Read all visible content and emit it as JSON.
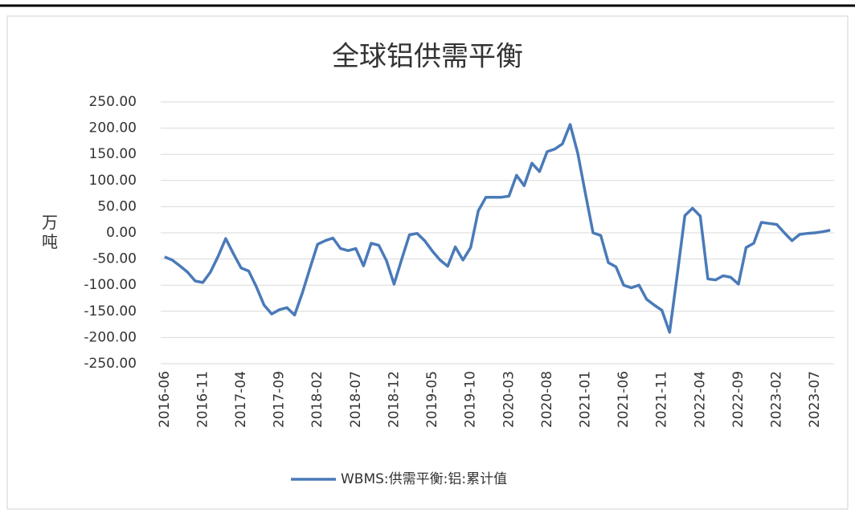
{
  "chart_data": {
    "type": "line",
    "title": "全球铝供需平衡",
    "y_label": "万吨",
    "categories": [
      "2016-06",
      null,
      null,
      null,
      null,
      "2016-11",
      null,
      null,
      null,
      null,
      "2017-04",
      null,
      null,
      null,
      null,
      "2017-09",
      null,
      null,
      null,
      null,
      "2018-02",
      null,
      null,
      null,
      null,
      "2018-07",
      null,
      null,
      null,
      null,
      "2018-12",
      null,
      null,
      null,
      null,
      "2019-05",
      null,
      null,
      null,
      null,
      "2019-10",
      null,
      null,
      null,
      null,
      "2020-03",
      null,
      null,
      null,
      null,
      "2020-08",
      null,
      null,
      null,
      null,
      "2021-01",
      null,
      null,
      null,
      null,
      "2021-06",
      null,
      null,
      null,
      null,
      "2021-11",
      null,
      null,
      null,
      null,
      "2022-04",
      null,
      null,
      null,
      null,
      "2022-09",
      null,
      null,
      null,
      null,
      "2023-02",
      null,
      null,
      null,
      null,
      "2023-07",
      null,
      null
    ],
    "series": [
      {
        "name": "WBMS:供需平衡:铝:累计值",
        "color": "#4a7ab8",
        "values": [
          -46,
          -52,
          -63,
          -75,
          -92,
          -95,
          -75,
          -45,
          -11,
          -40,
          -67,
          -73,
          -103,
          -138,
          -155,
          -147,
          -143,
          -157,
          -115,
          -68,
          -22,
          -15,
          -10,
          -30,
          -34,
          -30,
          -63,
          -20,
          -24,
          -53,
          -98,
          -50,
          -4,
          -1,
          -15,
          -35,
          -52,
          -64,
          -27,
          -52,
          -28,
          42,
          68,
          68,
          68,
          70,
          110,
          90,
          133,
          117,
          155,
          160,
          170,
          207,
          152,
          75,
          0,
          -5,
          -57,
          -65,
          -100,
          -105,
          -100,
          -127,
          -138,
          -148,
          -190,
          -80,
          33,
          47,
          32,
          -88,
          -90,
          -82,
          -85,
          -98,
          -28,
          -20,
          20,
          18,
          16,
          0,
          -15,
          -3,
          -1,
          0,
          2,
          5
        ]
      }
    ],
    "ylim": [
      -250,
      250
    ],
    "yticks": [
      {
        "value": -250,
        "label": "-250.00"
      },
      {
        "value": -200,
        "label": "-200.00"
      },
      {
        "value": -150,
        "label": "-150.00"
      },
      {
        "value": -100,
        "label": "-100.00"
      },
      {
        "value": -50,
        "label": "-50.00"
      },
      {
        "value": 0,
        "label": "0.00"
      },
      {
        "value": 50,
        "label": "50.00"
      },
      {
        "value": 100,
        "label": "100.00"
      },
      {
        "value": 150,
        "label": "150.00"
      },
      {
        "value": 200,
        "label": "200.00"
      },
      {
        "value": 250,
        "label": "250.00"
      }
    ],
    "grid": true,
    "legend": "bottom"
  }
}
